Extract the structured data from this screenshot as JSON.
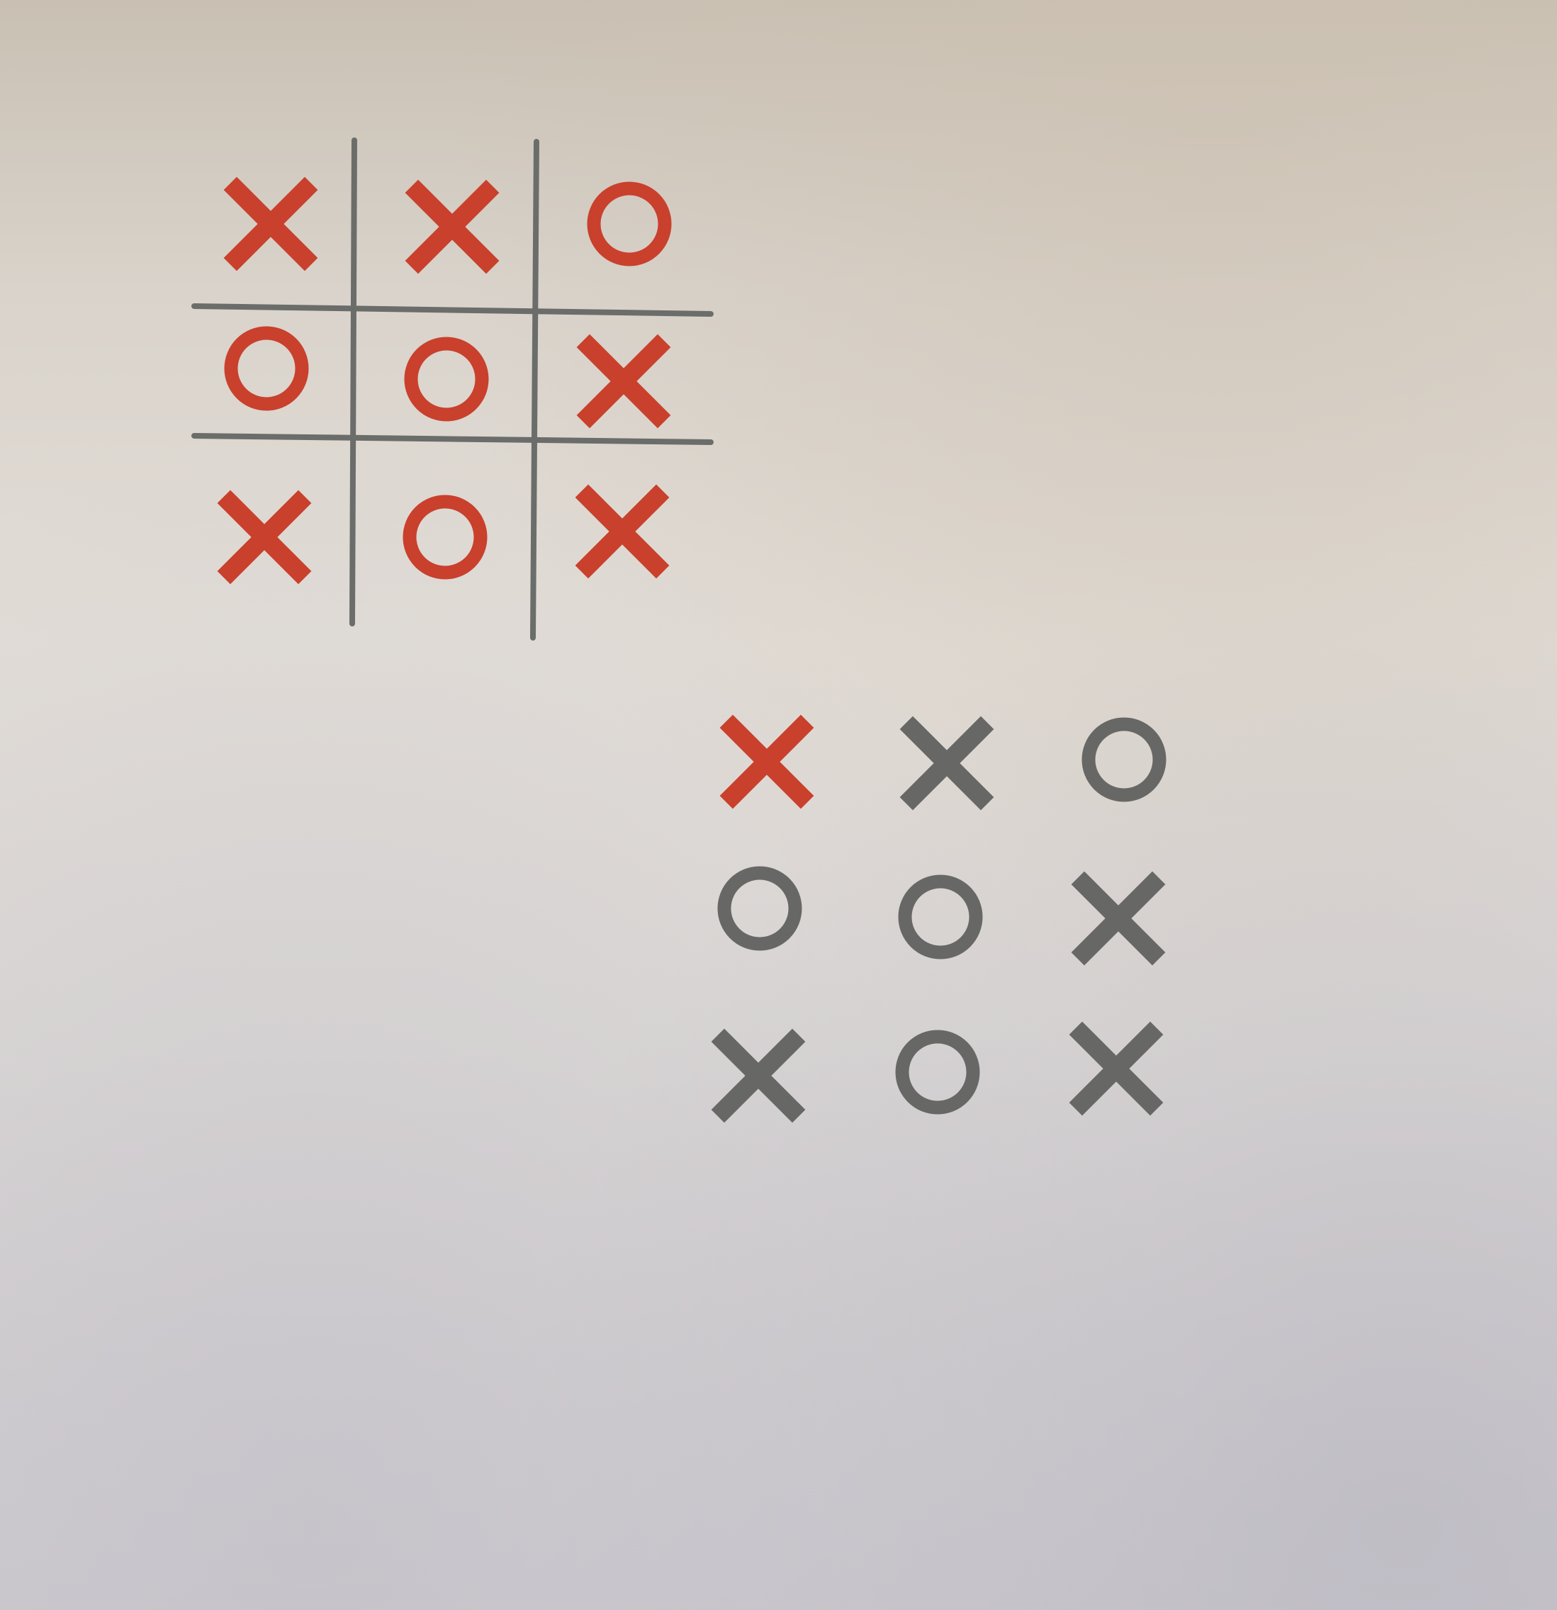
{
  "colors": {
    "grid": "#6b6d6b",
    "red": "#c9402c",
    "gray": "#676865"
  },
  "boards": [
    {
      "id": "top",
      "has_grid": true,
      "cells": [
        {
          "symbol": "X",
          "color": "red"
        },
        {
          "symbol": "X",
          "color": "red"
        },
        {
          "symbol": "O",
          "color": "red"
        },
        {
          "symbol": "O",
          "color": "red"
        },
        {
          "symbol": "O",
          "color": "red"
        },
        {
          "symbol": "X",
          "color": "red"
        },
        {
          "symbol": "X",
          "color": "red"
        },
        {
          "symbol": "O",
          "color": "red"
        },
        {
          "symbol": "X",
          "color": "red"
        }
      ]
    },
    {
      "id": "bottom",
      "has_grid": false,
      "cells": [
        {
          "symbol": "X",
          "color": "red"
        },
        {
          "symbol": "X",
          "color": "gray"
        },
        {
          "symbol": "O",
          "color": "gray"
        },
        {
          "symbol": "O",
          "color": "gray"
        },
        {
          "symbol": "O",
          "color": "gray"
        },
        {
          "symbol": "X",
          "color": "gray"
        },
        {
          "symbol": "X",
          "color": "gray"
        },
        {
          "symbol": "O",
          "color": "gray"
        },
        {
          "symbol": "X",
          "color": "gray"
        }
      ]
    }
  ]
}
